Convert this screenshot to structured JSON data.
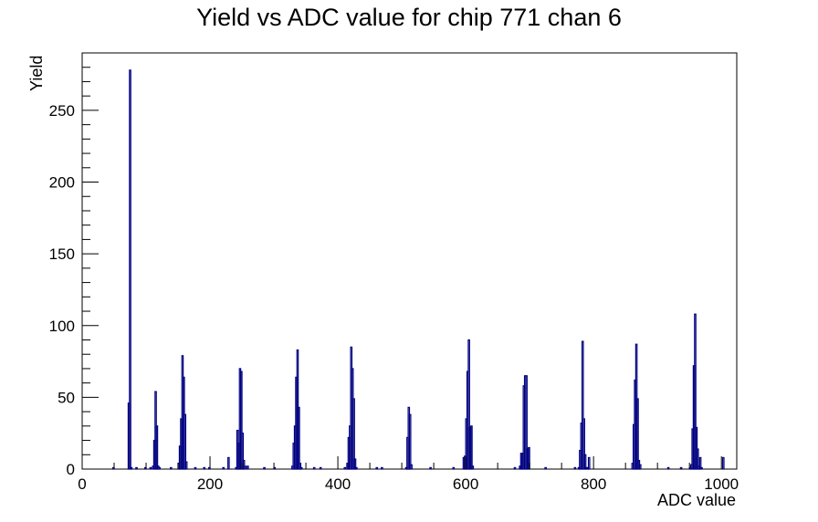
{
  "chart_data": {
    "type": "histogram",
    "title": "Yield vs ADC value for chip 771 chan 6",
    "xlabel": "ADC value",
    "ylabel": "Yield",
    "xlim": [
      0,
      1024
    ],
    "ylim": [
      0,
      290
    ],
    "x_ticks": [
      0,
      200,
      400,
      600,
      800,
      1000
    ],
    "y_ticks": [
      0,
      50,
      100,
      150,
      200,
      250
    ],
    "bin_width": 2,
    "line_color": "#000080",
    "grid": false,
    "legend": "none",
    "bins": [
      [
        48,
        1
      ],
      [
        72,
        46
      ],
      [
        74,
        278
      ],
      [
        76,
        1
      ],
      [
        84,
        1
      ],
      [
        98,
        1
      ],
      [
        106,
        1
      ],
      [
        110,
        2
      ],
      [
        112,
        20
      ],
      [
        114,
        54
      ],
      [
        116,
        30
      ],
      [
        118,
        2
      ],
      [
        120,
        1
      ],
      [
        138,
        1
      ],
      [
        150,
        4
      ],
      [
        152,
        16
      ],
      [
        154,
        35
      ],
      [
        156,
        79
      ],
      [
        158,
        64
      ],
      [
        160,
        38
      ],
      [
        162,
        5
      ],
      [
        176,
        1
      ],
      [
        190,
        1
      ],
      [
        198,
        1
      ],
      [
        220,
        1
      ],
      [
        228,
        8
      ],
      [
        240,
        1
      ],
      [
        242,
        27
      ],
      [
        244,
        18
      ],
      [
        246,
        70
      ],
      [
        248,
        68
      ],
      [
        250,
        25
      ],
      [
        252,
        6
      ],
      [
        254,
        2
      ],
      [
        258,
        2
      ],
      [
        284,
        1
      ],
      [
        300,
        1
      ],
      [
        328,
        2
      ],
      [
        330,
        18
      ],
      [
        332,
        30
      ],
      [
        334,
        64
      ],
      [
        336,
        83
      ],
      [
        338,
        43
      ],
      [
        340,
        4
      ],
      [
        342,
        1
      ],
      [
        362,
        1
      ],
      [
        372,
        1
      ],
      [
        410,
        1
      ],
      [
        414,
        4
      ],
      [
        416,
        22
      ],
      [
        418,
        30
      ],
      [
        420,
        85
      ],
      [
        422,
        70
      ],
      [
        424,
        49
      ],
      [
        426,
        7
      ],
      [
        428,
        1
      ],
      [
        460,
        1
      ],
      [
        468,
        1
      ],
      [
        506,
        1
      ],
      [
        508,
        22
      ],
      [
        510,
        43
      ],
      [
        512,
        38
      ],
      [
        514,
        3
      ],
      [
        544,
        1
      ],
      [
        580,
        1
      ],
      [
        596,
        8
      ],
      [
        598,
        9
      ],
      [
        600,
        35
      ],
      [
        602,
        68
      ],
      [
        604,
        90
      ],
      [
        606,
        29
      ],
      [
        608,
        30
      ],
      [
        610,
        2
      ],
      [
        676,
        1
      ],
      [
        684,
        2
      ],
      [
        686,
        11
      ],
      [
        688,
        11
      ],
      [
        690,
        58
      ],
      [
        692,
        65
      ],
      [
        694,
        65
      ],
      [
        696,
        14
      ],
      [
        698,
        15
      ],
      [
        724,
        1
      ],
      [
        770,
        1
      ],
      [
        776,
        1
      ],
      [
        778,
        13
      ],
      [
        780,
        32
      ],
      [
        782,
        89
      ],
      [
        784,
        35
      ],
      [
        786,
        10
      ],
      [
        788,
        1
      ],
      [
        790,
        1
      ],
      [
        792,
        8
      ],
      [
        860,
        4
      ],
      [
        862,
        31
      ],
      [
        864,
        62
      ],
      [
        866,
        87
      ],
      [
        868,
        49
      ],
      [
        870,
        6
      ],
      [
        872,
        3
      ],
      [
        916,
        1
      ],
      [
        936,
        1
      ],
      [
        950,
        1
      ],
      [
        952,
        3
      ],
      [
        954,
        28
      ],
      [
        956,
        72
      ],
      [
        958,
        108
      ],
      [
        960,
        29
      ],
      [
        962,
        14
      ],
      [
        964,
        2
      ],
      [
        966,
        8
      ],
      [
        968,
        1
      ],
      [
        1002,
        8
      ]
    ]
  }
}
